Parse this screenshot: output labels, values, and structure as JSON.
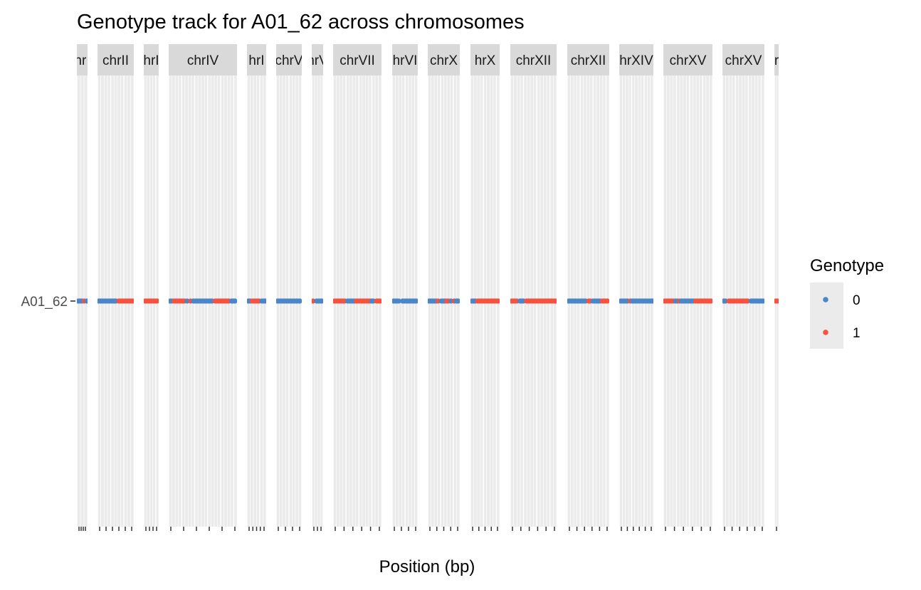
{
  "chart_data": {
    "type": "scatter",
    "title": "Genotype track for A01_62 across chromosomes",
    "xlabel": "Position (bp)",
    "ylabel": "",
    "y_categories": [
      "A01_62"
    ],
    "facet_variable": "chromosome",
    "facet_scales": "free_x",
    "grid": true,
    "legend": {
      "title": "Genotype",
      "position": "right",
      "entries": [
        {
          "label": "0",
          "color": "#4A86C8"
        },
        {
          "label": "1",
          "color": "#F4533F"
        }
      ]
    },
    "colors": {
      "genotype_0": "#4A86C8",
      "genotype_1": "#F4533F",
      "panel_background": "#EBEBEB",
      "strip_background": "#D9D9D9",
      "gridline": "#FFFFFF"
    },
    "facets": [
      {
        "label": "chrI",
        "strip_text": "hrI",
        "ticks": 4,
        "runs": [
          [
            "0",
            0.0,
            0.55
          ],
          [
            "1",
            0.55,
            0.8
          ],
          [
            "0",
            0.8,
            1.0
          ]
        ]
      },
      {
        "label": "chrII",
        "strip_text": "chrII",
        "ticks": 6,
        "runs": [
          [
            "0",
            0.0,
            0.55
          ],
          [
            "1",
            0.55,
            1.0
          ]
        ]
      },
      {
        "label": "chrIII",
        "strip_text": "hrI",
        "ticks": 4,
        "runs": [
          [
            "1",
            0.0,
            1.0
          ]
        ]
      },
      {
        "label": "chrIV",
        "strip_text": "chrIV",
        "ticks": 6,
        "runs": [
          [
            "0",
            0.0,
            0.06
          ],
          [
            "1",
            0.06,
            0.25
          ],
          [
            "0",
            0.25,
            0.3
          ],
          [
            "1",
            0.3,
            0.34
          ],
          [
            "0",
            0.34,
            0.66
          ],
          [
            "1",
            0.66,
            0.9
          ],
          [
            "0",
            0.9,
            1.0
          ]
        ]
      },
      {
        "label": "chrV",
        "strip_text": "hrI",
        "ticks": 5,
        "runs": [
          [
            "0",
            0.0,
            0.2
          ],
          [
            "1",
            0.2,
            0.7
          ],
          [
            "0",
            0.7,
            1.0
          ]
        ]
      },
      {
        "label": "chrVI",
        "strip_text": "chrV",
        "ticks": 4,
        "runs": [
          [
            "0",
            0.0,
            1.0
          ]
        ]
      },
      {
        "label": "chrVII",
        "strip_text": "hrV",
        "ticks": 3,
        "runs": [
          [
            "1",
            0.0,
            0.3
          ],
          [
            "0",
            0.3,
            1.0
          ]
        ]
      },
      {
        "label": "chrVIII",
        "strip_text": "chrVII",
        "ticks": 6,
        "runs": [
          [
            "1",
            0.0,
            0.27
          ],
          [
            "0",
            0.27,
            0.45
          ],
          [
            "1",
            0.45,
            0.77
          ],
          [
            "0",
            0.77,
            0.87
          ],
          [
            "1",
            0.87,
            1.0
          ]
        ]
      },
      {
        "label": "chrIX",
        "strip_text": "hrVI",
        "ticks": 4,
        "runs": [
          [
            "0",
            0.0,
            0.3
          ],
          [
            "1",
            0.3,
            0.35
          ],
          [
            "0",
            0.35,
            1.0
          ]
        ]
      },
      {
        "label": "chrX",
        "strip_text": "chrX",
        "ticks": 5,
        "runs": [
          [
            "0",
            0.0,
            0.28
          ],
          [
            "1",
            0.28,
            0.38
          ],
          [
            "0",
            0.38,
            0.55
          ],
          [
            "1",
            0.55,
            0.68
          ],
          [
            "0",
            0.68,
            0.78
          ],
          [
            "1",
            0.78,
            0.85
          ],
          [
            "0",
            0.85,
            1.0
          ]
        ]
      },
      {
        "label": "chrXI",
        "strip_text": "hrX",
        "ticks": 5,
        "runs": [
          [
            "0",
            0.0,
            0.2
          ],
          [
            "1",
            0.2,
            1.0
          ]
        ]
      },
      {
        "label": "chrXII",
        "strip_text": "chrXII",
        "ticks": 6,
        "runs": [
          [
            "1",
            0.0,
            0.18
          ],
          [
            "0",
            0.18,
            0.32
          ],
          [
            "1",
            0.32,
            1.0
          ]
        ]
      },
      {
        "label": "chrXIII",
        "strip_text": "chrXII",
        "ticks": 6,
        "runs": [
          [
            "0",
            0.0,
            0.48
          ],
          [
            "1",
            0.48,
            0.58
          ],
          [
            "0",
            0.58,
            0.8
          ],
          [
            "1",
            0.8,
            1.0
          ]
        ]
      },
      {
        "label": "chrXIV",
        "strip_text": "hrXIV",
        "ticks": 6,
        "runs": [
          [
            "0",
            0.0,
            0.28
          ],
          [
            "1",
            0.28,
            0.34
          ],
          [
            "0",
            0.34,
            1.0
          ]
        ]
      },
      {
        "label": "chrXV",
        "strip_text": "chrXV",
        "ticks": 6,
        "runs": [
          [
            "1",
            0.0,
            0.22
          ],
          [
            "0",
            0.22,
            0.3
          ],
          [
            "1",
            0.3,
            0.34
          ],
          [
            "0",
            0.34,
            0.63
          ],
          [
            "1",
            0.63,
            1.0
          ]
        ]
      },
      {
        "label": "chrXVI",
        "strip_text": "chrXV",
        "ticks": 6,
        "runs": [
          [
            "0",
            0.0,
            0.12
          ],
          [
            "1",
            0.12,
            0.65
          ],
          [
            "0",
            0.65,
            1.0
          ]
        ]
      },
      {
        "label": "chrM",
        "strip_text": "r",
        "ticks": 1,
        "runs": [
          [
            "1",
            0.0,
            1.0
          ]
        ]
      }
    ]
  }
}
